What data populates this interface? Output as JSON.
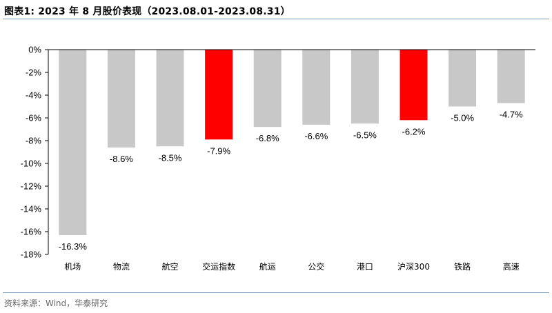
{
  "header": {
    "title": "图表1:  2023 年 8 月股价表现（2023.08.01-2023.08.31）"
  },
  "footer": {
    "source": "资料来源：Wind，华泰研究"
  },
  "colors": {
    "default_bar": "#c8c8c8",
    "highlight_bar": "#ff0000",
    "rule": "#7f9fbf"
  },
  "chart_data": {
    "type": "bar",
    "title": "",
    "xlabel": "",
    "ylabel": "",
    "categories": [
      "机场",
      "物流",
      "航空",
      "交运指数",
      "航运",
      "公交",
      "港口",
      "沪深300",
      "铁路",
      "高速"
    ],
    "values": [
      -16.3,
      -8.6,
      -8.5,
      -7.9,
      -6.8,
      -6.6,
      -6.5,
      -6.2,
      -5.0,
      -4.7
    ],
    "value_labels": [
      "-16.3%",
      "-8.6%",
      "-8.5%",
      "-7.9%",
      "-6.8%",
      "-6.6%",
      "-6.5%",
      "-6.2%",
      "-5.0%",
      "-4.7%"
    ],
    "highlight": [
      "交运指数",
      "沪深300"
    ],
    "ylim": [
      -18,
      0
    ],
    "yticks": [
      0,
      -2,
      -4,
      -6,
      -8,
      -10,
      -12,
      -14,
      -16,
      -18
    ],
    "ytick_labels": [
      "0%",
      "-2%",
      "-4%",
      "-6%",
      "-8%",
      "-10%",
      "-12%",
      "-14%",
      "-16%",
      "-18%"
    ],
    "grid": false,
    "legend": "none"
  }
}
